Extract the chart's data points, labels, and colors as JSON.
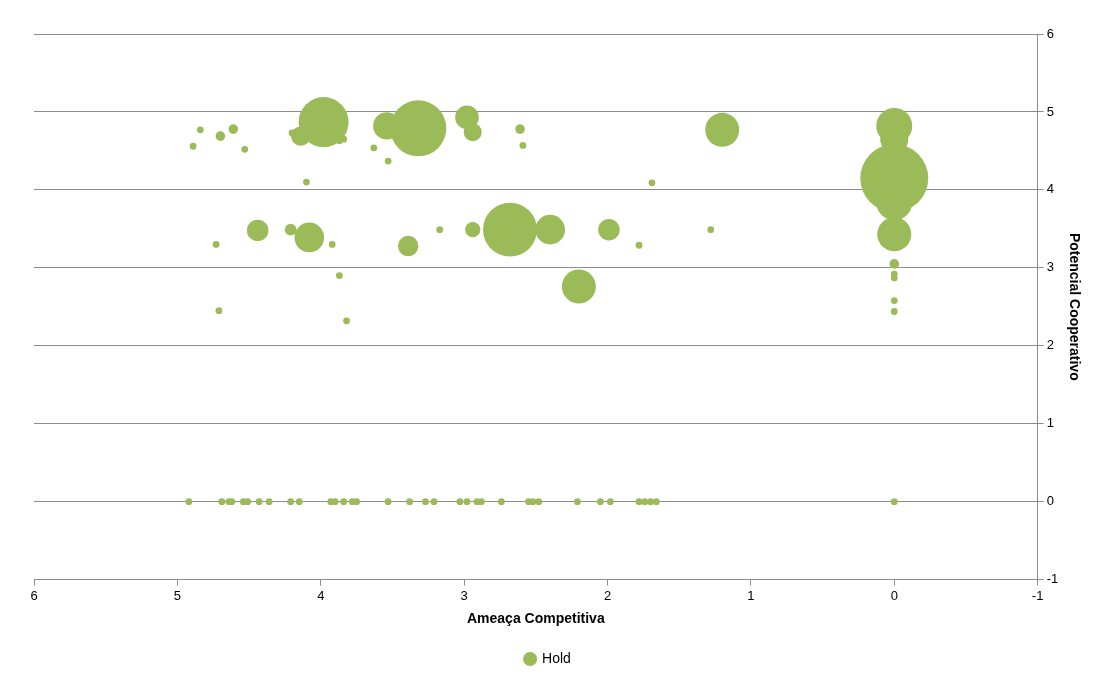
{
  "chart_data": {
    "type": "bubble",
    "xlabel": "Ameaça Competitiva",
    "ylabel": "Potencial Cooperativo",
    "xlim": [
      6,
      -1
    ],
    "xticks": [
      6,
      5,
      4,
      3,
      2,
      1,
      0,
      -1
    ],
    "ylim": [
      -1,
      6
    ],
    "yticks": [
      -1,
      0,
      1,
      2,
      3,
      4,
      5,
      6
    ],
    "grid": "y",
    "legend": "bottom",
    "series": [
      {
        "name": "Hold",
        "color": "#9bbb59",
        "x": [
          3.98,
          3.32,
          3.54,
          2.98,
          2.94,
          4.14,
          1.2,
          0,
          0,
          0,
          0,
          0,
          0,
          0,
          0,
          0,
          0,
          4.44,
          4.21,
          4.08,
          3.39,
          2.94,
          2.68,
          2.4,
          1.99,
          2.2,
          4.84,
          4.61,
          4.7,
          4.89,
          4.53,
          3.84,
          3.87,
          3.63,
          3.53,
          4.2,
          2.61,
          2.59,
          4.1,
          1.69,
          4.73,
          3.92,
          3.17,
          1.78,
          1.28,
          3.87,
          4.71,
          3.82,
          4.92,
          4.69,
          4.64,
          4.62,
          4.54,
          4.51,
          4.43,
          4.36,
          4.21,
          4.15,
          3.93,
          3.9,
          3.84,
          3.78,
          3.75,
          3.53,
          3.38,
          3.27,
          3.21,
          3.03,
          2.98,
          2.91,
          2.88,
          2.74,
          2.55,
          2.52,
          2.48,
          2.21,
          2.05,
          1.98,
          1.78,
          1.74,
          1.7,
          1.66,
          0
        ],
        "values": [
          4.87,
          4.79,
          4.82,
          4.93,
          4.74,
          4.69,
          4.77,
          4.82,
          4.15,
          4.65,
          3.84,
          3.43,
          3.05,
          2.92,
          2.87,
          2.58,
          2.44,
          3.48,
          3.49,
          3.39,
          3.28,
          3.49,
          3.49,
          3.49,
          3.49,
          2.76,
          4.77,
          4.78,
          4.69,
          4.56,
          4.52,
          4.65,
          4.63,
          4.54,
          4.37,
          4.73,
          4.78,
          4.57,
          4.1,
          4.09,
          3.3,
          3.3,
          3.49,
          3.29,
          3.49,
          2.9,
          2.45,
          2.32,
          0,
          0,
          0,
          0,
          0,
          0,
          0,
          0,
          0,
          0,
          0,
          0,
          0,
          0,
          0,
          0,
          0,
          0,
          0,
          0,
          0,
          0,
          0,
          0,
          0,
          0,
          0,
          0,
          0,
          0,
          0,
          0,
          0,
          0,
          0
        ],
        "sizes": [
          0.54,
          0.68,
          0.16,
          0.12,
          0.07,
          0.08,
          0.25,
          0.28,
          1,
          0.17,
          0.28,
          0.25,
          0.02,
          0.01,
          0.01,
          0.01,
          0.01,
          0.1,
          0.03,
          0.19,
          0.09,
          0.05,
          0.63,
          0.19,
          0.1,
          0.25,
          0.01,
          0.02,
          0.02,
          0.01,
          0.01,
          0.01,
          0.01,
          0.01,
          0.01,
          0.01,
          0.02,
          0.01,
          0.01,
          0.01,
          0.01,
          0.01,
          0.01,
          0.01,
          0.01,
          0.01,
          0.01,
          0.01,
          0.01,
          0.01,
          0.01,
          0.01,
          0.01,
          0.01,
          0.01,
          0.01,
          0.01,
          0.01,
          0.01,
          0.01,
          0.01,
          0.01,
          0.01,
          0.01,
          0.01,
          0.01,
          0.01,
          0.01,
          0.01,
          0.01,
          0.01,
          0.01,
          0.01,
          0.01,
          0.01,
          0.01,
          0.01,
          0.01,
          0.01,
          0.01,
          0.01,
          0.01,
          0.01
        ]
      }
    ]
  }
}
